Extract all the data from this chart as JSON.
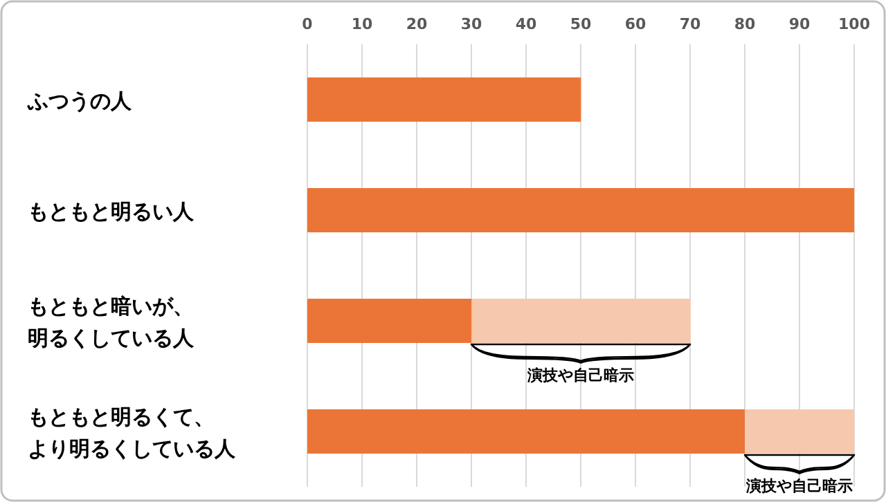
{
  "chart_data": {
    "type": "bar",
    "orientation": "horizontal",
    "stacked": true,
    "categories": [
      "ふつうの人",
      "もともと明るい人",
      "もともと暗いが、明るくしている人",
      "もともと明るくて、より明るくしている人"
    ],
    "series": [
      {
        "color": "#ea7536",
        "values": [
          50,
          100,
          30,
          80
        ]
      },
      {
        "color": "#f6c8ad",
        "values": [
          null,
          null,
          40,
          20
        ]
      }
    ],
    "xlim": [
      0,
      100
    ],
    "xticks": [
      0,
      10,
      20,
      30,
      40,
      50,
      60,
      70,
      80,
      90,
      100
    ],
    "grid": "x",
    "annotations": [
      "演技や自己暗示",
      "演技や自己暗示"
    ]
  }
}
